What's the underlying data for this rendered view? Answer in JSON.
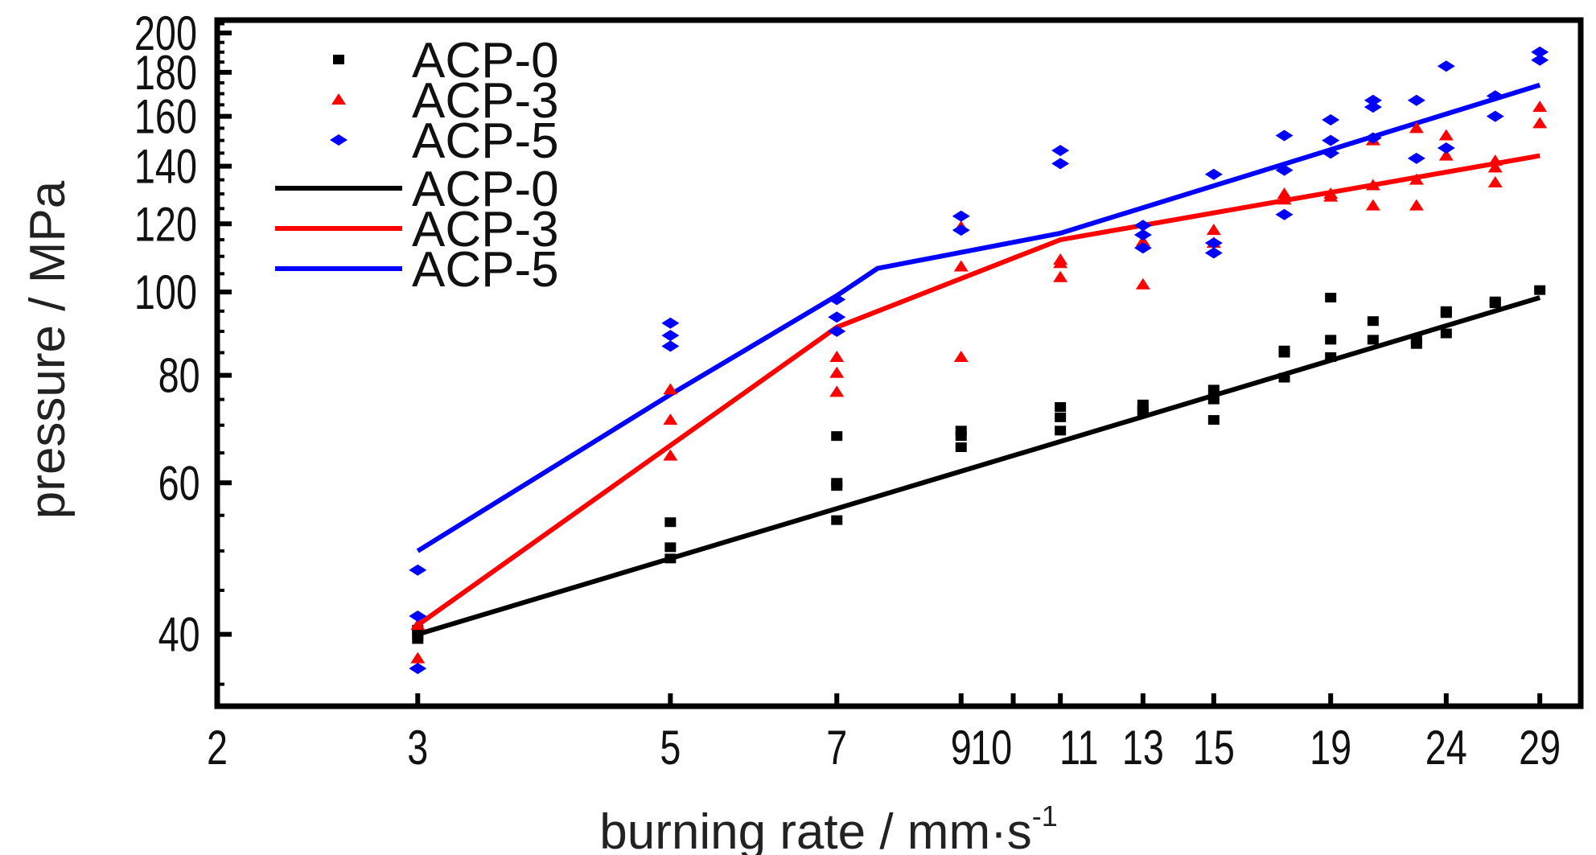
{
  "chart_data": {
    "type": "scatter",
    "xlabel": "burning rate / mm·s",
    "xlabel_sup": "-1",
    "ylabel": "pressure / MPa",
    "x_scale": "log",
    "y_scale": "log",
    "xlim": [
      2,
      31.5
    ],
    "ylim": [
      33,
      207
    ],
    "x_ticks": [
      2,
      3,
      5,
      7,
      9,
      10,
      11,
      13,
      15,
      19,
      24,
      29
    ],
    "y_ticks": [
      40,
      60,
      80,
      100,
      120,
      140,
      160,
      180,
      200
    ],
    "legend": {
      "position": "top-left"
    },
    "colors": {
      "ACP-0": "#000000",
      "ACP-3": "#ff0000",
      "ACP-5": "#0000ff"
    },
    "scatter_series": [
      {
        "name": "ACP-0",
        "marker": "square",
        "color": "#000000",
        "points": [
          [
            3.0,
            40.0
          ],
          [
            3.0,
            39.5
          ],
          [
            3.0,
            40.5
          ],
          [
            5.0,
            54.0
          ],
          [
            5.0,
            50.5
          ],
          [
            5.0,
            49.0
          ],
          [
            7.0,
            68.0
          ],
          [
            7.0,
            60.0
          ],
          [
            7.0,
            59.5
          ],
          [
            7.0,
            54.3
          ],
          [
            9.0,
            69.0
          ],
          [
            9.0,
            68.0
          ],
          [
            9.0,
            66.0
          ],
          [
            11.0,
            73.5
          ],
          [
            11.0,
            71.5
          ],
          [
            11.0,
            69.0
          ],
          [
            13.0,
            74.0
          ],
          [
            13.0,
            73.0
          ],
          [
            13.0,
            72.5
          ],
          [
            15.0,
            77.0
          ],
          [
            15.0,
            75.0
          ],
          [
            15.0,
            71.0
          ],
          [
            17.3,
            85.5
          ],
          [
            17.3,
            85.0
          ],
          [
            17.3,
            79.5
          ],
          [
            19.0,
            98.5
          ],
          [
            19.0,
            88.0
          ],
          [
            19.0,
            84.0
          ],
          [
            20.7,
            92.5
          ],
          [
            20.7,
            88.0
          ],
          [
            22.6,
            88.0
          ],
          [
            22.6,
            87.0
          ],
          [
            24.0,
            95.0
          ],
          [
            24.0,
            94.5
          ],
          [
            24.0,
            89.5
          ],
          [
            26.5,
            97.5
          ],
          [
            26.5,
            97.0
          ],
          [
            29.0,
            100.5
          ]
        ]
      },
      {
        "name": "ACP-3",
        "marker": "triangle",
        "color": "#ff0000",
        "points": [
          [
            3.0,
            41.0
          ],
          [
            3.0,
            37.5
          ],
          [
            5.0,
            77.0
          ],
          [
            5.0,
            71.0
          ],
          [
            5.0,
            64.5
          ],
          [
            7.0,
            84.0
          ],
          [
            7.0,
            80.5
          ],
          [
            7.0,
            76.5
          ],
          [
            9.0,
            119.0
          ],
          [
            9.0,
            107.0
          ],
          [
            9.0,
            84.0
          ],
          [
            11.0,
            109.0
          ],
          [
            11.0,
            108.0
          ],
          [
            11.0,
            104.0
          ],
          [
            13.0,
            114.5
          ],
          [
            13.0,
            102.0
          ],
          [
            15.0,
            118.0
          ],
          [
            15.0,
            114.0
          ],
          [
            17.3,
            130.0
          ],
          [
            17.3,
            128.0
          ],
          [
            19.0,
            130.0
          ],
          [
            19.0,
            129.0
          ],
          [
            20.7,
            150.0
          ],
          [
            20.7,
            133.0
          ],
          [
            20.7,
            126.0
          ],
          [
            22.6,
            155.0
          ],
          [
            22.6,
            135.0
          ],
          [
            22.6,
            126.0
          ],
          [
            24.0,
            152.0
          ],
          [
            24.0,
            144.0
          ],
          [
            26.5,
            142.0
          ],
          [
            26.5,
            139.5
          ],
          [
            26.5,
            134.0
          ],
          [
            29.0,
            164.0
          ],
          [
            29.0,
            157.0
          ]
        ]
      },
      {
        "name": "ACP-5",
        "marker": "diamond",
        "color": "#0000ff",
        "points": [
          [
            3.0,
            47.5
          ],
          [
            3.0,
            42.0
          ],
          [
            3.0,
            36.5
          ],
          [
            5.0,
            92.0
          ],
          [
            5.0,
            89.0
          ],
          [
            5.0,
            86.5
          ],
          [
            7.0,
            98.0
          ],
          [
            7.0,
            93.5
          ],
          [
            7.0,
            90.0
          ],
          [
            9.0,
            122.5
          ],
          [
            9.0,
            118.0
          ],
          [
            11.0,
            146.0
          ],
          [
            11.0,
            141.0
          ],
          [
            13.0,
            119.5
          ],
          [
            13.0,
            116.5
          ],
          [
            13.0,
            112.5
          ],
          [
            15.0,
            137.0
          ],
          [
            15.0,
            114.0
          ],
          [
            15.0,
            111.0
          ],
          [
            17.3,
            152.0
          ],
          [
            17.3,
            138.5
          ],
          [
            17.3,
            123.0
          ],
          [
            19.0,
            158.5
          ],
          [
            19.0,
            150.0
          ],
          [
            19.0,
            145.0
          ],
          [
            20.7,
            167.0
          ],
          [
            20.7,
            164.0
          ],
          [
            20.7,
            151.0
          ],
          [
            22.6,
            167.0
          ],
          [
            22.6,
            143.0
          ],
          [
            24.0,
            183.0
          ],
          [
            24.0,
            147.0
          ],
          [
            26.5,
            169.0
          ],
          [
            26.5,
            160.0
          ],
          [
            29.0,
            190.0
          ],
          [
            29.0,
            186.0
          ]
        ]
      }
    ],
    "line_series": [
      {
        "name": "ACP-0",
        "color": "#000000",
        "x": [
          3.0,
          29.0
        ],
        "y": [
          40.0,
          98.5
        ]
      },
      {
        "name": "ACP-3",
        "color": "#ff0000",
        "x": [
          3.0,
          7.0,
          11.0,
          29.0
        ],
        "y": [
          41.0,
          91.0,
          115.0,
          144.0
        ]
      },
      {
        "name": "ACP-5",
        "color": "#0000ff",
        "x": [
          3.0,
          5.0,
          7.0,
          7.6,
          11.0,
          29.0
        ],
        "y": [
          50.0,
          76.0,
          99.0,
          106.5,
          117.0,
          174.0
        ]
      }
    ]
  }
}
